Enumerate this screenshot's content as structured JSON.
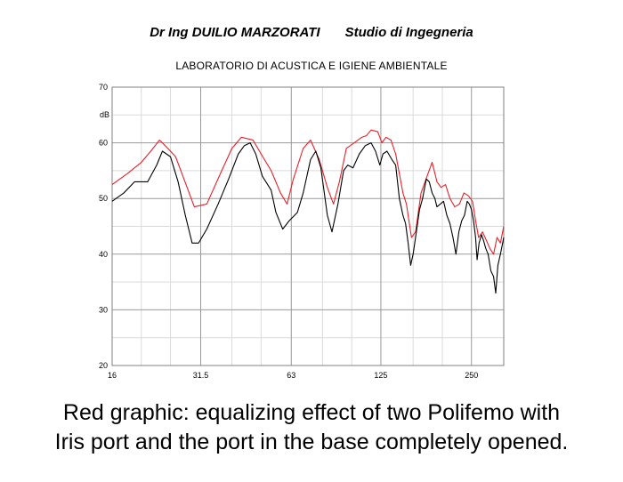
{
  "header": {
    "author": "Dr Ing DUILIO MARZORATI",
    "studio": "Studio di Ingegneria"
  },
  "lab": "LABORATORIO DI ACUSTICA E IGIENE AMBIENTALE",
  "caption": {
    "line1": "Red graphic: equalizing effect of two Polifemo with",
    "line2": "Iris port and the port in the base completely opened."
  },
  "colors": {
    "red_series": "#e8202a",
    "black_series": "#000000",
    "grid": "#9a9a9a",
    "minor_grid": "#dadada"
  },
  "chart_data": {
    "type": "line",
    "xscale": "log",
    "xlim": [
      16,
      320
    ],
    "ylim": [
      20,
      70
    ],
    "ylabel": "dB",
    "xticks": [
      16,
      31.5,
      63,
      125,
      250
    ],
    "xtick_labels": [
      "16",
      "31.5",
      "63",
      "125",
      "250"
    ],
    "yticks": [
      20,
      30,
      40,
      50,
      60,
      70
    ],
    "ytick_labels": [
      "20",
      "30",
      "40",
      "50",
      "60",
      "70"
    ],
    "grid": true,
    "series": [
      {
        "color": "red",
        "points": [
          [
            16,
            52.5
          ],
          [
            18,
            54.5
          ],
          [
            20,
            56.5
          ],
          [
            21.5,
            58.5
          ],
          [
            23,
            60.5
          ],
          [
            24.5,
            59
          ],
          [
            26,
            57.5
          ],
          [
            27.5,
            54
          ],
          [
            30,
            48.5
          ],
          [
            33,
            49
          ],
          [
            37,
            55
          ],
          [
            40,
            59
          ],
          [
            43,
            61
          ],
          [
            47,
            60.5
          ],
          [
            50,
            58
          ],
          [
            54,
            55
          ],
          [
            58,
            51
          ],
          [
            61,
            49
          ],
          [
            64,
            53.5
          ],
          [
            69,
            59
          ],
          [
            73,
            60.5
          ],
          [
            78,
            57
          ],
          [
            83,
            52
          ],
          [
            87,
            49
          ],
          [
            91,
            53
          ],
          [
            96,
            59
          ],
          [
            102,
            60
          ],
          [
            108,
            61
          ],
          [
            112,
            61.3
          ],
          [
            116,
            62.3
          ],
          [
            122,
            62
          ],
          [
            126,
            60
          ],
          [
            130,
            61
          ],
          [
            135,
            60.5
          ],
          [
            140,
            58
          ],
          [
            148,
            51
          ],
          [
            152,
            49
          ],
          [
            158,
            43
          ],
          [
            163,
            44
          ],
          [
            170,
            51
          ],
          [
            178,
            54
          ],
          [
            185,
            56.5
          ],
          [
            192,
            53
          ],
          [
            198,
            52
          ],
          [
            205,
            52.5
          ],
          [
            212,
            50
          ],
          [
            220,
            48.5
          ],
          [
            228,
            49
          ],
          [
            236,
            51
          ],
          [
            244,
            50.5
          ],
          [
            252,
            49.5
          ],
          [
            258,
            46
          ],
          [
            264,
            43
          ],
          [
            272,
            44
          ],
          [
            280,
            42.5
          ],
          [
            288,
            41
          ],
          [
            296,
            40
          ],
          [
            304,
            43
          ],
          [
            312,
            42
          ],
          [
            320,
            45
          ]
        ]
      },
      {
        "color": "black",
        "points": [
          [
            16,
            49.5
          ],
          [
            17.5,
            51
          ],
          [
            19,
            53
          ],
          [
            21,
            53
          ],
          [
            22.5,
            56
          ],
          [
            23.5,
            58.5
          ],
          [
            25,
            57.5
          ],
          [
            26.5,
            53
          ],
          [
            28,
            47
          ],
          [
            29.5,
            42
          ],
          [
            31,
            42
          ],
          [
            33,
            44.5
          ],
          [
            36,
            49
          ],
          [
            39,
            53.5
          ],
          [
            42,
            58
          ],
          [
            44,
            59.5
          ],
          [
            46,
            60
          ],
          [
            48,
            58
          ],
          [
            50.5,
            54
          ],
          [
            54,
            51.5
          ],
          [
            56,
            47.5
          ],
          [
            59,
            44.5
          ],
          [
            62,
            46
          ],
          [
            66,
            47.5
          ],
          [
            69,
            51
          ],
          [
            73,
            57
          ],
          [
            76,
            58.5
          ],
          [
            79,
            55.5
          ],
          [
            83,
            47
          ],
          [
            86,
            44
          ],
          [
            90,
            49
          ],
          [
            94,
            55
          ],
          [
            97,
            56
          ],
          [
            101,
            55.5
          ],
          [
            106,
            58
          ],
          [
            111,
            59.5
          ],
          [
            116,
            60
          ],
          [
            120,
            58.5
          ],
          [
            124,
            56
          ],
          [
            127,
            58
          ],
          [
            131,
            58.5
          ],
          [
            136,
            57
          ],
          [
            140,
            56
          ],
          [
            144,
            50
          ],
          [
            148,
            47
          ],
          [
            151,
            45.5
          ],
          [
            154,
            42
          ],
          [
            157,
            38
          ],
          [
            160,
            40
          ],
          [
            164,
            44
          ],
          [
            168,
            48
          ],
          [
            172,
            50
          ],
          [
            177,
            53.5
          ],
          [
            181,
            53
          ],
          [
            185,
            51
          ],
          [
            189,
            50
          ],
          [
            192,
            48.5
          ],
          [
            197,
            49
          ],
          [
            202,
            49.5
          ],
          [
            207,
            47
          ],
          [
            212,
            45.5
          ],
          [
            217,
            43
          ],
          [
            222,
            40
          ],
          [
            227,
            44
          ],
          [
            232,
            46
          ],
          [
            237,
            47
          ],
          [
            242,
            49.5
          ],
          [
            246,
            49
          ],
          [
            250,
            48
          ],
          [
            254,
            46
          ],
          [
            258,
            43
          ],
          [
            261,
            39
          ],
          [
            265,
            42
          ],
          [
            270,
            43.5
          ],
          [
            274,
            42.5
          ],
          [
            279,
            41
          ],
          [
            284,
            40
          ],
          [
            290,
            37
          ],
          [
            296,
            36
          ],
          [
            301,
            33
          ],
          [
            306,
            38
          ],
          [
            312,
            40
          ],
          [
            320,
            43
          ]
        ]
      }
    ]
  }
}
